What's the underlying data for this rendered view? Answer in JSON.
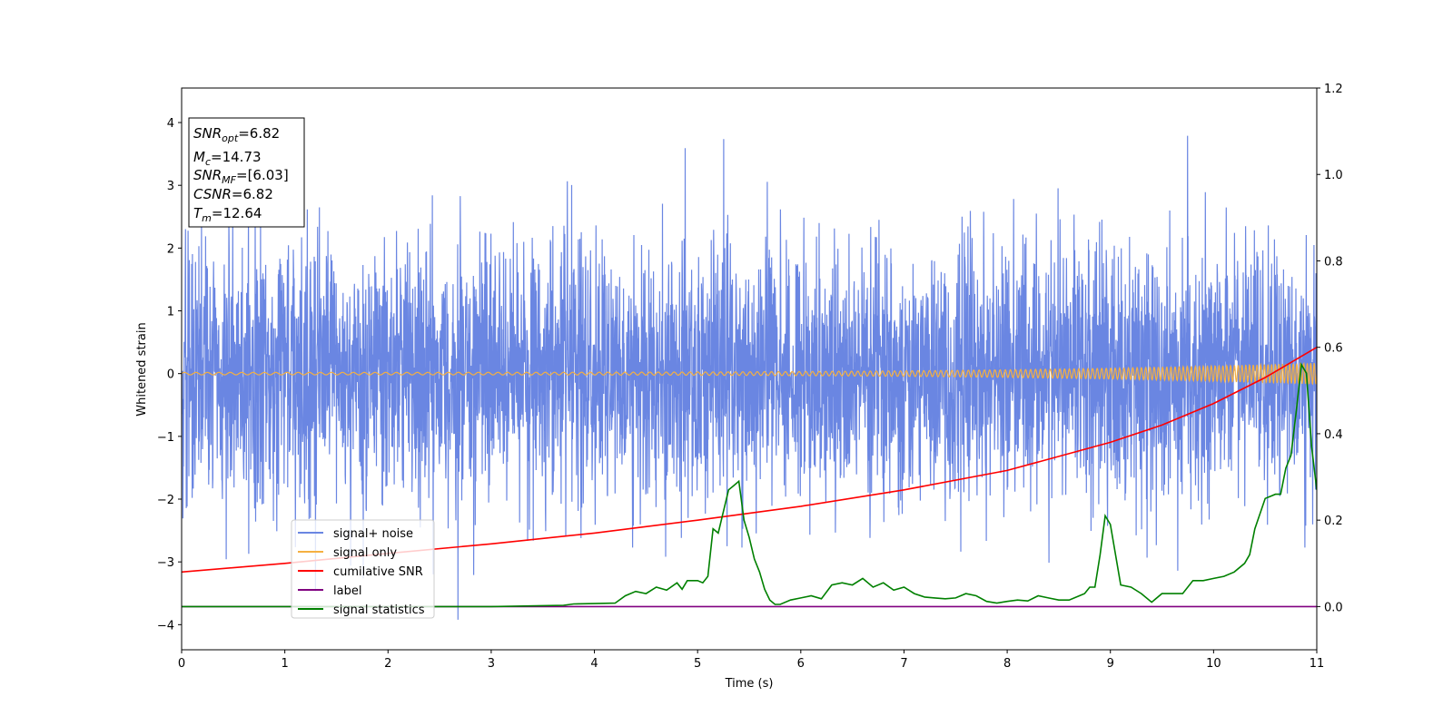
{
  "chart_data": {
    "type": "line",
    "xlabel": "Time (s)",
    "ylabel": "Whitened strain",
    "xlim": [
      0,
      11
    ],
    "ylim_left": [
      -4.4,
      4.55
    ],
    "ylim_right": [
      -0.1,
      1.2
    ],
    "x_ticks": [
      "0",
      "1",
      "2",
      "3",
      "4",
      "5",
      "6",
      "7",
      "8",
      "9",
      "10",
      "11"
    ],
    "y_ticks_left": [
      "−4",
      "−3",
      "−2",
      "−1",
      "0",
      "1",
      "2",
      "3",
      "4"
    ],
    "y_ticks_right": [
      "0.0",
      "0.2",
      "0.4",
      "0.6",
      "0.8",
      "1.0",
      "1.2"
    ],
    "grid": false,
    "legend_placement": "lower-left",
    "annotation": {
      "snr_opt": {
        "base": "SNR",
        "sub": "opt",
        "value": "=6.82"
      },
      "mc": {
        "base": "M",
        "sub": "c",
        "value": "=14.73"
      },
      "snr_mf": {
        "base": "SNR",
        "sub": "MF",
        "value": "=[6.03]"
      },
      "csnr": {
        "base": "CSNR",
        "sub": "",
        "value": "=6.82"
      },
      "tm": {
        "base": "T",
        "sub": "m",
        "value": "=12.64"
      }
    },
    "series": [
      {
        "name": "signal+ noise",
        "color": "#6a86e2",
        "axis": "left",
        "style": "noise",
        "sample_rate_hz": 400,
        "typical_range": [
          -2.2,
          2.2
        ],
        "extreme_range": [
          -4.0,
          4.18
        ]
      },
      {
        "name": "signal only",
        "color": "#f5b041",
        "axis": "left",
        "style": "chirp",
        "amplitude_start": 0.02,
        "amplitude_end": 0.17
      },
      {
        "name": "cumilative SNR",
        "color": "#ff0000",
        "axis": "right",
        "x": [
          0,
          1,
          2,
          3,
          4,
          5,
          6,
          7,
          8,
          9,
          9.5,
          10,
          10.5,
          11
        ],
        "y": [
          0.08,
          0.1,
          0.123,
          0.145,
          0.17,
          0.2,
          0.232,
          0.27,
          0.315,
          0.38,
          0.42,
          0.47,
          0.53,
          0.6
        ]
      },
      {
        "name": "label",
        "color": "#800080",
        "axis": "right",
        "x": [
          0,
          11
        ],
        "y": [
          0,
          0
        ]
      },
      {
        "name": "signal statistics",
        "color": "#008000",
        "axis": "right",
        "x": [
          0,
          0.5,
          1,
          1.5,
          2,
          2.5,
          3,
          3.5,
          3.7,
          3.8,
          4,
          4.2,
          4.3,
          4.4,
          4.5,
          4.6,
          4.7,
          4.8,
          4.85,
          4.9,
          5,
          5.05,
          5.1,
          5.15,
          5.2,
          5.25,
          5.3,
          5.35,
          5.4,
          5.45,
          5.5,
          5.55,
          5.6,
          5.65,
          5.7,
          5.75,
          5.8,
          5.9,
          6,
          6.1,
          6.2,
          6.3,
          6.4,
          6.5,
          6.6,
          6.7,
          6.8,
          6.9,
          7,
          7.1,
          7.2,
          7.3,
          7.4,
          7.5,
          7.6,
          7.7,
          7.8,
          7.9,
          8,
          8.1,
          8.2,
          8.3,
          8.4,
          8.5,
          8.6,
          8.7,
          8.75,
          8.8,
          8.85,
          8.9,
          8.95,
          9,
          9.1,
          9.2,
          9.3,
          9.4,
          9.5,
          9.6,
          9.7,
          9.8,
          9.9,
          10,
          10.1,
          10.2,
          10.3,
          10.35,
          10.4,
          10.5,
          10.6,
          10.65,
          10.7,
          10.75,
          10.8,
          10.85,
          10.9,
          10.95,
          11
        ],
        "y": [
          0.0,
          0.0,
          0.0,
          0.0,
          0.0,
          0.0,
          0.0,
          0.002,
          0.003,
          0.006,
          0.007,
          0.008,
          0.025,
          0.035,
          0.03,
          0.045,
          0.038,
          0.055,
          0.04,
          0.06,
          0.06,
          0.055,
          0.07,
          0.18,
          0.17,
          0.22,
          0.27,
          0.28,
          0.29,
          0.2,
          0.16,
          0.11,
          0.08,
          0.04,
          0.015,
          0.005,
          0.005,
          0.015,
          0.02,
          0.025,
          0.018,
          0.05,
          0.055,
          0.05,
          0.065,
          0.045,
          0.055,
          0.038,
          0.045,
          0.03,
          0.022,
          0.02,
          0.018,
          0.02,
          0.03,
          0.025,
          0.012,
          0.008,
          0.012,
          0.015,
          0.013,
          0.025,
          0.02,
          0.015,
          0.015,
          0.025,
          0.03,
          0.045,
          0.045,
          0.12,
          0.21,
          0.19,
          0.05,
          0.045,
          0.03,
          0.01,
          0.03,
          0.03,
          0.03,
          0.06,
          0.06,
          0.065,
          0.07,
          0.08,
          0.1,
          0.12,
          0.18,
          0.25,
          0.26,
          0.26,
          0.32,
          0.35,
          0.45,
          0.56,
          0.54,
          0.37,
          0.27
        ]
      }
    ]
  }
}
